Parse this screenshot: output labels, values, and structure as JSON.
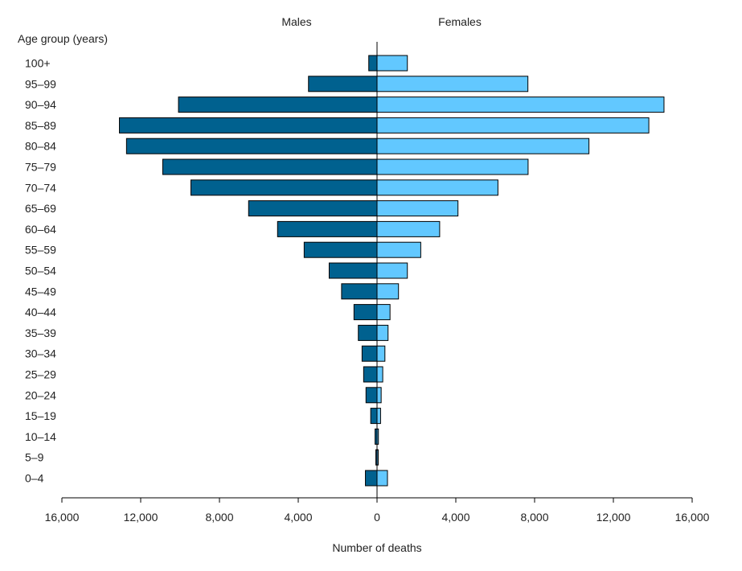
{
  "chart_data": {
    "type": "bar",
    "orientation": "horizontal",
    "style": "population-pyramid",
    "categories": [
      "100+",
      "95–99",
      "90–94",
      "85–89",
      "80–84",
      "75–79",
      "70–74",
      "65–69",
      "60–64",
      "55–59",
      "50–54",
      "45–49",
      "40–44",
      "35–39",
      "30–34",
      "25–29",
      "20–24",
      "15–19",
      "10–14",
      "5–9",
      "0–4"
    ],
    "series": [
      {
        "name": "Males",
        "color": "#00618f",
        "values": [
          420,
          3480,
          10080,
          13080,
          12720,
          10880,
          9450,
          6520,
          5050,
          3700,
          2430,
          1800,
          1170,
          950,
          760,
          680,
          560,
          320,
          100,
          60,
          590
        ]
      },
      {
        "name": "Females",
        "color": "#62c8ff",
        "values": [
          1540,
          7660,
          14570,
          13800,
          10760,
          7670,
          6140,
          4110,
          3180,
          2220,
          1540,
          1090,
          660,
          560,
          400,
          290,
          210,
          180,
          70,
          60,
          530
        ]
      }
    ],
    "title": "",
    "category_axis_title": "Age group (years)",
    "xlabel": "Number of deaths",
    "xlim": [
      -16000,
      16000
    ],
    "xticks": [
      -16000,
      -12000,
      -8000,
      -4000,
      0,
      4000,
      8000,
      12000,
      16000
    ],
    "xtick_labels": [
      "16,000",
      "12,000",
      "8,000",
      "4,000",
      "0",
      "4,000",
      "8,000",
      "12,000",
      "16,000"
    ],
    "side_labels": {
      "left": "Males",
      "right": "Females"
    },
    "grid": false,
    "legend": "none"
  }
}
